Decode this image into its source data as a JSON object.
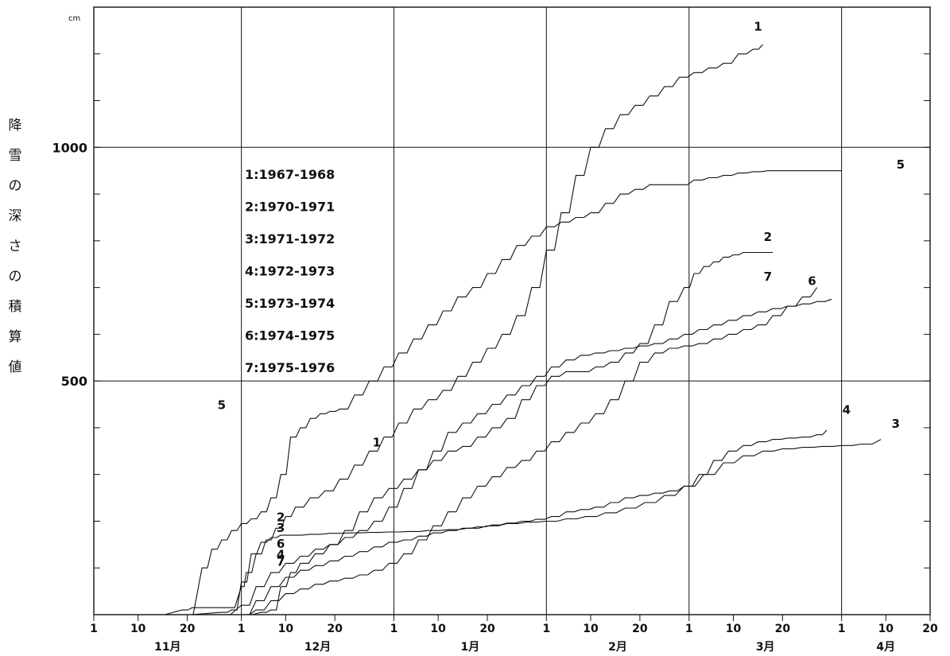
{
  "chart_data": {
    "type": "line",
    "title": "",
    "ylabel": "降雪の深さの積算値",
    "yunit": "cm",
    "ylim": [
      0,
      1300
    ],
    "yticks": [
      {
        "value": 500,
        "label": "500"
      },
      {
        "value": 1000,
        "label": "1000"
      }
    ],
    "y_minor_tick_step": 100,
    "grid": true,
    "x_axis": {
      "unit": "day since Nov 1",
      "range": [
        0,
        170
      ],
      "month_boundaries": [
        30,
        61,
        92,
        121,
        152
      ],
      "ticks": [
        {
          "x": 0,
          "label": "1"
        },
        {
          "x": 9,
          "label": "10"
        },
        {
          "x": 19,
          "label": "20"
        },
        {
          "x": 30,
          "label": "1"
        },
        {
          "x": 39,
          "label": "10"
        },
        {
          "x": 49,
          "label": "20"
        },
        {
          "x": 61,
          "label": "1"
        },
        {
          "x": 70,
          "label": "10"
        },
        {
          "x": 80,
          "label": "20"
        },
        {
          "x": 92,
          "label": "1"
        },
        {
          "x": 101,
          "label": "10"
        },
        {
          "x": 111,
          "label": "20"
        },
        {
          "x": 121,
          "label": "1"
        },
        {
          "x": 130,
          "label": "10"
        },
        {
          "x": 140,
          "label": "20"
        },
        {
          "x": 152,
          "label": "1"
        },
        {
          "x": 161,
          "label": "10"
        },
        {
          "x": 170,
          "label": "20"
        }
      ],
      "months": [
        {
          "x": 15,
          "label": "11月"
        },
        {
          "x": 45.5,
          "label": "12月"
        },
        {
          "x": 76.5,
          "label": "1月"
        },
        {
          "x": 106.5,
          "label": "2月"
        },
        {
          "x": 136.5,
          "label": "3月"
        },
        {
          "x": 161,
          "label": "4月"
        }
      ]
    },
    "legend": [
      "1:1967-1968",
      "2:1970-1971",
      "3:1971-1972",
      "4:1972-1973",
      "5:1973-1974",
      "6:1974-1975",
      "7:1975-1976"
    ],
    "legend_position": "upper-left",
    "series": [
      {
        "name": "1",
        "label_at": [
          57.5,
          360
        ],
        "end_label_at": [
          135,
          1250
        ],
        "x": [
          10,
          18,
          20,
          27,
          30,
          31,
          33,
          35,
          37,
          39,
          41,
          44,
          47,
          50,
          53,
          56,
          59,
          62,
          65,
          68,
          71,
          74,
          77,
          80,
          83,
          86,
          89,
          92,
          95,
          98,
          101,
          104,
          107,
          110,
          113,
          116,
          119,
          122,
          125,
          128,
          131,
          134,
          136
        ],
        "y": [
          0,
          10,
          15,
          15,
          60,
          90,
          130,
          160,
          185,
          210,
          230,
          250,
          265,
          290,
          320,
          350,
          380,
          410,
          440,
          460,
          480,
          510,
          540,
          570,
          600,
          640,
          700,
          780,
          860,
          940,
          1000,
          1040,
          1070,
          1090,
          1110,
          1130,
          1150,
          1160,
          1170,
          1180,
          1200,
          1210,
          1220
        ]
      },
      {
        "name": "2",
        "label_at": [
          38,
          200
        ],
        "end_label_at": [
          137,
          800
        ],
        "x": [
          30,
          34,
          36,
          38,
          40,
          42,
          45,
          48,
          51,
          54,
          57,
          60,
          63,
          66,
          69,
          72,
          75,
          78,
          81,
          84,
          87,
          90,
          93,
          96,
          99,
          102,
          105,
          108,
          111,
          114,
          117,
          120,
          122,
          124,
          126,
          128,
          130,
          132,
          134,
          136,
          138
        ],
        "y": [
          0,
          5,
          10,
          60,
          90,
          110,
          130,
          150,
          180,
          220,
          250,
          270,
          290,
          310,
          330,
          350,
          360,
          380,
          400,
          420,
          460,
          490,
          510,
          520,
          520,
          530,
          540,
          560,
          580,
          620,
          670,
          700,
          730,
          745,
          755,
          765,
          770,
          775,
          775,
          775,
          775
        ]
      },
      {
        "name": "3",
        "label_at": [
          38,
          177
        ],
        "end_label_at": [
          163,
          400
        ],
        "x": [
          12,
          26,
          28,
          30,
          32,
          34,
          36,
          38,
          40,
          44,
          48,
          52,
          56,
          60,
          64,
          68,
          72,
          76,
          80,
          84,
          88,
          92,
          96,
          100,
          104,
          108,
          112,
          116,
          120,
          124,
          128,
          132,
          136,
          140,
          144,
          148,
          152,
          156,
          160
        ],
        "y": [
          0,
          5,
          10,
          70,
          130,
          155,
          165,
          170,
          170,
          172,
          174,
          175,
          176,
          177,
          178,
          180,
          182,
          185,
          190,
          195,
          198,
          200,
          205,
          210,
          218,
          228,
          240,
          255,
          275,
          300,
          325,
          340,
          350,
          355,
          358,
          360,
          362,
          365,
          375
        ]
      },
      {
        "name": "4",
        "label_at": [
          38,
          120
        ],
        "end_label_at": [
          153,
          430
        ],
        "x": [
          30,
          33,
          36,
          39,
          42,
          45,
          48,
          51,
          54,
          57,
          60,
          63,
          66,
          69,
          72,
          75,
          78,
          81,
          84,
          87,
          90,
          93,
          96,
          99,
          102,
          105,
          108,
          111,
          114,
          117,
          120,
          123,
          126,
          129,
          132,
          135,
          138,
          141,
          144,
          147,
          149
        ],
        "y": [
          0,
          30,
          60,
          80,
          95,
          105,
          115,
          125,
          135,
          145,
          155,
          160,
          168,
          175,
          180,
          185,
          188,
          192,
          196,
          200,
          204,
          210,
          220,
          225,
          230,
          240,
          250,
          255,
          260,
          265,
          275,
          300,
          330,
          350,
          362,
          370,
          375,
          378,
          380,
          385,
          395
        ]
      },
      {
        "name": "5",
        "label_at": [
          26,
          440
        ],
        "end_label_at": [
          164,
          955
        ],
        "x": [
          18,
          22,
          24,
          26,
          28,
          30,
          32,
          34,
          36,
          38,
          40,
          42,
          44,
          46,
          48,
          50,
          53,
          56,
          59,
          62,
          65,
          68,
          71,
          74,
          77,
          80,
          83,
          86,
          89,
          92,
          95,
          98,
          101,
          104,
          107,
          110,
          113,
          116,
          119,
          122,
          125,
          128,
          131,
          134,
          137,
          140,
          143,
          146,
          149,
          152
        ],
        "y": [
          0,
          100,
          140,
          160,
          180,
          195,
          205,
          220,
          250,
          300,
          380,
          400,
          420,
          430,
          435,
          440,
          470,
          500,
          530,
          560,
          590,
          620,
          650,
          680,
          700,
          730,
          760,
          790,
          810,
          830,
          840,
          850,
          860,
          880,
          900,
          910,
          920,
          920,
          920,
          930,
          935,
          940,
          945,
          948,
          950,
          950,
          950,
          950,
          950,
          950
        ]
      },
      {
        "name": "6",
        "label_at": [
          38,
          143
        ],
        "end_label_at": [
          146,
          705
        ],
        "x": [
          25,
          30,
          33,
          36,
          39,
          42,
          45,
          48,
          51,
          54,
          57,
          60,
          63,
          66,
          69,
          72,
          75,
          78,
          81,
          84,
          87,
          90,
          93,
          96,
          99,
          102,
          105,
          108,
          111,
          114,
          117,
          120,
          123,
          126,
          129,
          132,
          135,
          138,
          141,
          144,
          147,
          150
        ],
        "y": [
          0,
          20,
          60,
          90,
          110,
          125,
          140,
          150,
          165,
          180,
          200,
          230,
          270,
          310,
          350,
          390,
          410,
          430,
          450,
          470,
          490,
          510,
          530,
          545,
          555,
          560,
          565,
          570,
          575,
          580,
          590,
          600,
          610,
          620,
          630,
          640,
          648,
          655,
          660,
          665,
          670,
          675
        ]
      },
      {
        "name": "7",
        "label_at": [
          38,
          105
        ],
        "end_label_at": [
          137,
          715
        ],
        "x": [
          30,
          33,
          36,
          39,
          42,
          45,
          48,
          51,
          54,
          57,
          60,
          63,
          66,
          69,
          72,
          75,
          78,
          81,
          84,
          87,
          90,
          93,
          96,
          99,
          102,
          105,
          108,
          111,
          114,
          117,
          120,
          123,
          126,
          129,
          132,
          135,
          138,
          141,
          144,
          147
        ],
        "y": [
          0,
          10,
          30,
          45,
          55,
          65,
          72,
          78,
          85,
          95,
          110,
          130,
          160,
          190,
          220,
          250,
          275,
          295,
          315,
          330,
          350,
          370,
          390,
          410,
          430,
          460,
          500,
          540,
          560,
          570,
          575,
          580,
          590,
          600,
          610,
          620,
          640,
          660,
          680,
          700
        ]
      }
    ]
  }
}
